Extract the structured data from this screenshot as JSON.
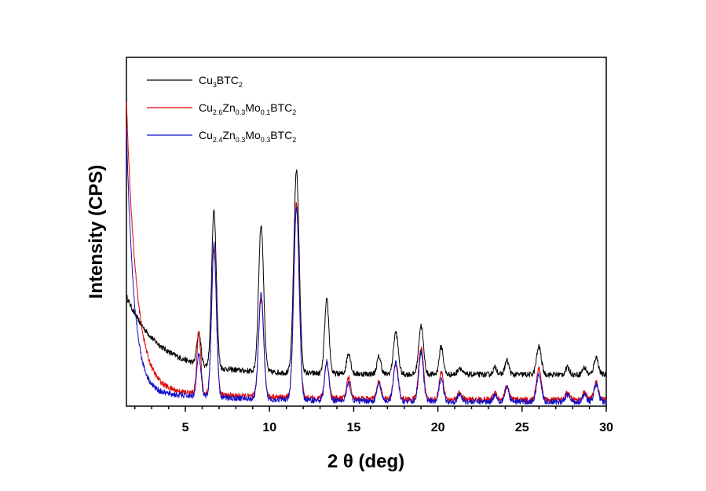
{
  "chart_data": {
    "type": "line",
    "title": "",
    "xlabel": "2 θ (deg)",
    "ylabel": "Intensity (CPS)",
    "xlim": [
      1.5,
      30
    ],
    "ylim": [
      0,
      100
    ],
    "x_ticks": [
      "5",
      "10",
      "15",
      "20",
      "25",
      "30"
    ],
    "y_ticks_labeled": false,
    "grid": false,
    "legend_position": "top-left",
    "series": [
      {
        "name": "Cu3BTC2",
        "legend_parts": [
          [
            "Cu",
            ""
          ],
          [
            "3",
            "sub"
          ],
          [
            "BTC",
            ""
          ],
          [
            "2",
            "sub"
          ]
        ],
        "color": "#000000",
        "baseline": {
          "a": 20,
          "b": 9,
          "tau": 1.8,
          "tail": 2.5
        },
        "peaks": [
          [
            5.8,
            9,
            0.12
          ],
          [
            6.7,
            45,
            0.14
          ],
          [
            9.5,
            42,
            0.15
          ],
          [
            11.6,
            58,
            0.16
          ],
          [
            13.4,
            21,
            0.13
          ],
          [
            14.7,
            6,
            0.12
          ],
          [
            16.5,
            5,
            0.12
          ],
          [
            17.5,
            12,
            0.14
          ],
          [
            19.0,
            14,
            0.14
          ],
          [
            20.2,
            8,
            0.12
          ],
          [
            21.3,
            2,
            0.12
          ],
          [
            23.4,
            2,
            0.12
          ],
          [
            24.1,
            4,
            0.12
          ],
          [
            26.0,
            8,
            0.14
          ],
          [
            27.7,
            2,
            0.12
          ],
          [
            28.7,
            2,
            0.12
          ],
          [
            29.4,
            5,
            0.13
          ]
        ]
      },
      {
        "name": "Cu2.6Zn0.3Mo0.1BTC2",
        "legend_parts": [
          [
            "Cu",
            ""
          ],
          [
            "2.6",
            "sub"
          ],
          [
            "Zn",
            ""
          ],
          [
            "0.3",
            "sub"
          ],
          [
            "Mo",
            ""
          ],
          [
            "0.1",
            "sub"
          ],
          [
            "BTC",
            ""
          ],
          [
            "2",
            "sub"
          ]
        ],
        "color": "#e00000",
        "baseline": {
          "a": 82,
          "b": 1.8,
          "tau": 0.6,
          "tail": 3.5
        },
        "peaks": [
          [
            5.8,
            17,
            0.12
          ],
          [
            6.7,
            42,
            0.14
          ],
          [
            9.5,
            28,
            0.15
          ],
          [
            11.6,
            56,
            0.16
          ],
          [
            13.4,
            10,
            0.13
          ],
          [
            14.7,
            6,
            0.12
          ],
          [
            16.5,
            5,
            0.12
          ],
          [
            17.5,
            10,
            0.14
          ],
          [
            19.0,
            15,
            0.14
          ],
          [
            20.2,
            8,
            0.12
          ],
          [
            21.3,
            2,
            0.12
          ],
          [
            23.4,
            2,
            0.12
          ],
          [
            24.1,
            4,
            0.12
          ],
          [
            26.0,
            9,
            0.14
          ],
          [
            27.7,
            2,
            0.12
          ],
          [
            28.7,
            2,
            0.12
          ],
          [
            29.4,
            5,
            0.13
          ]
        ]
      },
      {
        "name": "Cu2.4Zn0.3Mo0.3BTC2",
        "legend_parts": [
          [
            "Cu",
            ""
          ],
          [
            "2.4",
            "sub"
          ],
          [
            "Zn",
            ""
          ],
          [
            "0.3",
            "sub"
          ],
          [
            "Mo",
            ""
          ],
          [
            "0.3",
            "sub"
          ],
          [
            "BTC",
            ""
          ],
          [
            "2",
            "sub"
          ]
        ],
        "color": "#1010c8",
        "baseline": {
          "a": 75,
          "b": 1.2,
          "tau": 0.45,
          "tail": 3.2
        },
        "peaks": [
          [
            5.8,
            12,
            0.12
          ],
          [
            6.7,
            44,
            0.14
          ],
          [
            9.5,
            30,
            0.15
          ],
          [
            11.6,
            55,
            0.16
          ],
          [
            13.4,
            11,
            0.13
          ],
          [
            14.7,
            5,
            0.12
          ],
          [
            16.5,
            5,
            0.12
          ],
          [
            17.5,
            11,
            0.14
          ],
          [
            19.0,
            14,
            0.14
          ],
          [
            20.2,
            7,
            0.12
          ],
          [
            21.3,
            2,
            0.12
          ],
          [
            23.4,
            2,
            0.12
          ],
          [
            24.1,
            4,
            0.12
          ],
          [
            26.0,
            8,
            0.14
          ],
          [
            27.7,
            2,
            0.12
          ],
          [
            28.7,
            2,
            0.12
          ],
          [
            29.4,
            5,
            0.13
          ]
        ]
      }
    ]
  }
}
